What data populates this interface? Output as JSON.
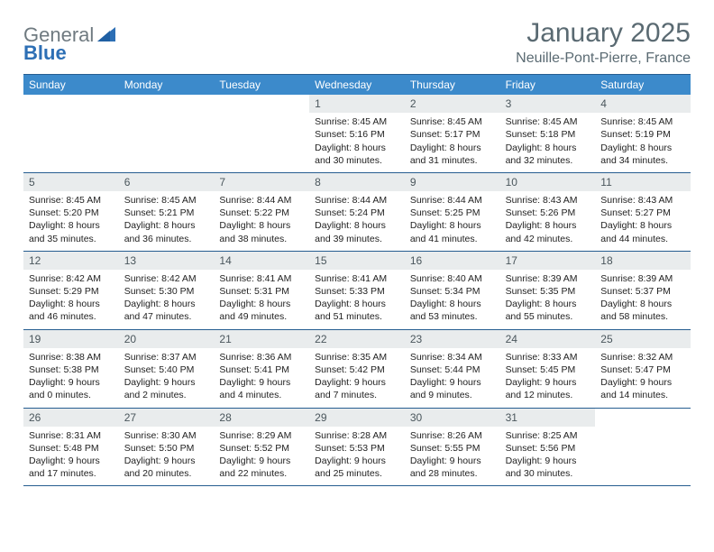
{
  "brand": {
    "part1": "General",
    "part2": "Blue"
  },
  "title": "January 2025",
  "location": "Neuille-Pont-Pierre, France",
  "colors": {
    "header_bg": "#3c8acb",
    "header_border": "#265d90",
    "daynum_bg": "#e9eced",
    "text_muted": "#5a6a72"
  },
  "weekdays": [
    "Sunday",
    "Monday",
    "Tuesday",
    "Wednesday",
    "Thursday",
    "Friday",
    "Saturday"
  ],
  "grid": {
    "leading_blanks": 3,
    "days": [
      {
        "n": 1,
        "sr": "8:45 AM",
        "ss": "5:16 PM",
        "dl": "8 hours and 30 minutes."
      },
      {
        "n": 2,
        "sr": "8:45 AM",
        "ss": "5:17 PM",
        "dl": "8 hours and 31 minutes."
      },
      {
        "n": 3,
        "sr": "8:45 AM",
        "ss": "5:18 PM",
        "dl": "8 hours and 32 minutes."
      },
      {
        "n": 4,
        "sr": "8:45 AM",
        "ss": "5:19 PM",
        "dl": "8 hours and 34 minutes."
      },
      {
        "n": 5,
        "sr": "8:45 AM",
        "ss": "5:20 PM",
        "dl": "8 hours and 35 minutes."
      },
      {
        "n": 6,
        "sr": "8:45 AM",
        "ss": "5:21 PM",
        "dl": "8 hours and 36 minutes."
      },
      {
        "n": 7,
        "sr": "8:44 AM",
        "ss": "5:22 PM",
        "dl": "8 hours and 38 minutes."
      },
      {
        "n": 8,
        "sr": "8:44 AM",
        "ss": "5:24 PM",
        "dl": "8 hours and 39 minutes."
      },
      {
        "n": 9,
        "sr": "8:44 AM",
        "ss": "5:25 PM",
        "dl": "8 hours and 41 minutes."
      },
      {
        "n": 10,
        "sr": "8:43 AM",
        "ss": "5:26 PM",
        "dl": "8 hours and 42 minutes."
      },
      {
        "n": 11,
        "sr": "8:43 AM",
        "ss": "5:27 PM",
        "dl": "8 hours and 44 minutes."
      },
      {
        "n": 12,
        "sr": "8:42 AM",
        "ss": "5:29 PM",
        "dl": "8 hours and 46 minutes."
      },
      {
        "n": 13,
        "sr": "8:42 AM",
        "ss": "5:30 PM",
        "dl": "8 hours and 47 minutes."
      },
      {
        "n": 14,
        "sr": "8:41 AM",
        "ss": "5:31 PM",
        "dl": "8 hours and 49 minutes."
      },
      {
        "n": 15,
        "sr": "8:41 AM",
        "ss": "5:33 PM",
        "dl": "8 hours and 51 minutes."
      },
      {
        "n": 16,
        "sr": "8:40 AM",
        "ss": "5:34 PM",
        "dl": "8 hours and 53 minutes."
      },
      {
        "n": 17,
        "sr": "8:39 AM",
        "ss": "5:35 PM",
        "dl": "8 hours and 55 minutes."
      },
      {
        "n": 18,
        "sr": "8:39 AM",
        "ss": "5:37 PM",
        "dl": "8 hours and 58 minutes."
      },
      {
        "n": 19,
        "sr": "8:38 AM",
        "ss": "5:38 PM",
        "dl": "9 hours and 0 minutes."
      },
      {
        "n": 20,
        "sr": "8:37 AM",
        "ss": "5:40 PM",
        "dl": "9 hours and 2 minutes."
      },
      {
        "n": 21,
        "sr": "8:36 AM",
        "ss": "5:41 PM",
        "dl": "9 hours and 4 minutes."
      },
      {
        "n": 22,
        "sr": "8:35 AM",
        "ss": "5:42 PM",
        "dl": "9 hours and 7 minutes."
      },
      {
        "n": 23,
        "sr": "8:34 AM",
        "ss": "5:44 PM",
        "dl": "9 hours and 9 minutes."
      },
      {
        "n": 24,
        "sr": "8:33 AM",
        "ss": "5:45 PM",
        "dl": "9 hours and 12 minutes."
      },
      {
        "n": 25,
        "sr": "8:32 AM",
        "ss": "5:47 PM",
        "dl": "9 hours and 14 minutes."
      },
      {
        "n": 26,
        "sr": "8:31 AM",
        "ss": "5:48 PM",
        "dl": "9 hours and 17 minutes."
      },
      {
        "n": 27,
        "sr": "8:30 AM",
        "ss": "5:50 PM",
        "dl": "9 hours and 20 minutes."
      },
      {
        "n": 28,
        "sr": "8:29 AM",
        "ss": "5:52 PM",
        "dl": "9 hours and 22 minutes."
      },
      {
        "n": 29,
        "sr": "8:28 AM",
        "ss": "5:53 PM",
        "dl": "9 hours and 25 minutes."
      },
      {
        "n": 30,
        "sr": "8:26 AM",
        "ss": "5:55 PM",
        "dl": "9 hours and 28 minutes."
      },
      {
        "n": 31,
        "sr": "8:25 AM",
        "ss": "5:56 PM",
        "dl": "9 hours and 30 minutes."
      }
    ]
  },
  "labels": {
    "sunrise": "Sunrise: ",
    "sunset": "Sunset: ",
    "daylight": "Daylight: "
  }
}
